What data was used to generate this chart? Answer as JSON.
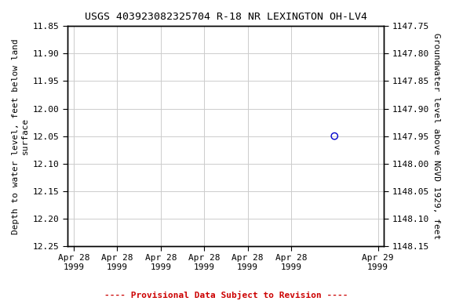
{
  "title": "USGS 403923082325704 R-18 NR LEXINGTON OH-LV4",
  "ylabel_left": "Depth to water level, feet below land\nsurface",
  "ylabel_right": "Groundwater level above NGVD 1929, feet",
  "ylim_left": [
    11.85,
    12.25
  ],
  "ylim_right": [
    1148.15,
    1147.75
  ],
  "yticks_left": [
    11.85,
    11.9,
    11.95,
    12.0,
    12.05,
    12.1,
    12.15,
    12.2,
    12.25
  ],
  "ytick_labels_left": [
    "11.85",
    "11.90",
    "11.95",
    "12.00",
    "12.05",
    "12.10",
    "12.15",
    "12.20",
    "12.25"
  ],
  "yticks_right": [
    1148.15,
    1148.1,
    1148.05,
    1148.0,
    1147.95,
    1147.9,
    1147.85,
    1147.8,
    1147.75
  ],
  "ytick_labels_right": [
    "1148.15",
    "1148.10",
    "1148.05",
    "1148.00",
    "1147.95",
    "1147.90",
    "1147.85",
    "1147.80",
    "1147.75"
  ],
  "data_x": [
    0.857
  ],
  "data_y": [
    12.05
  ],
  "point_color": "#0000cc",
  "point_marker": "o",
  "point_size": 18,
  "point_facecolor": "none",
  "xtick_positions": [
    0.0,
    0.142857,
    0.285714,
    0.428571,
    0.571428,
    0.714285,
    1.0
  ],
  "xtick_labels": [
    "Apr 28\n1999",
    "Apr 28\n1999",
    "Apr 28\n1999",
    "Apr 28\n1999",
    "Apr 28\n1999",
    "Apr 28\n1999",
    "Apr 29\n1999"
  ],
  "xlim": [
    -0.02,
    1.02
  ],
  "grid_color": "#cccccc",
  "background_color": "#ffffff",
  "provisional_text": "---- Provisional Data Subject to Revision ----",
  "provisional_color": "#cc0000",
  "title_fontsize": 9.5,
  "axis_label_fontsize": 8,
  "tick_fontsize": 8,
  "prov_fontsize": 8,
  "font_family": "monospace"
}
